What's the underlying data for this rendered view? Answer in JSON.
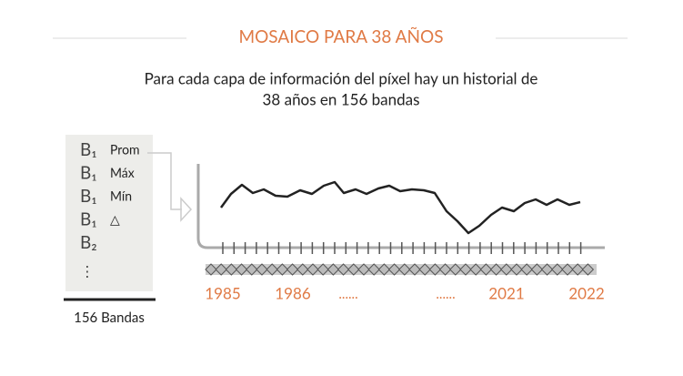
{
  "header": {
    "title": "MOSAICO PARA 38 AÑOS",
    "subtitle": [
      "Para cada capa de información del píxel hay un historial de",
      "38 años en 156 bandas"
    ]
  },
  "bands": [
    {
      "band": "B₁",
      "label": "Prom"
    },
    {
      "band": "B₁",
      "label": "Máx"
    },
    {
      "band": "B₁",
      "label": "Mín"
    },
    {
      "band": "B₁",
      "label": "△"
    },
    {
      "band": "B₂"
    },
    {
      "band": "⋮"
    }
  ],
  "bands_footer": "156 Bandas",
  "timeline": [
    "1985",
    "1986",
    "......",
    "......",
    "2021",
    "2022"
  ]
}
